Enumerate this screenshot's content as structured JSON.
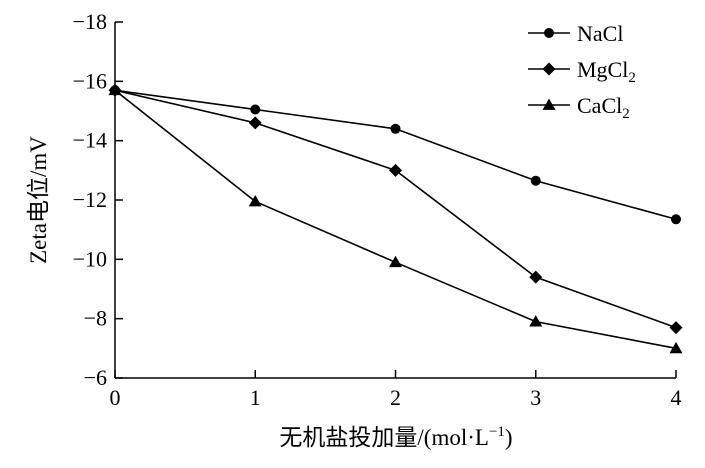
{
  "chart_data": {
    "type": "line",
    "x": [
      0,
      1,
      2,
      3,
      4
    ],
    "series": [
      {
        "name": "NaCl",
        "name_sub": "",
        "marker": "circle",
        "values": [
          -15.7,
          -15.05,
          -14.4,
          -12.65,
          -11.35
        ]
      },
      {
        "name": "MgCl",
        "name_sub": "2",
        "marker": "diamond",
        "values": [
          -15.7,
          -14.6,
          -13.0,
          -9.4,
          -7.7
        ]
      },
      {
        "name": "CaCl",
        "name_sub": "2",
        "marker": "triangle",
        "values": [
          -15.7,
          -11.95,
          -9.9,
          -7.9,
          -7.0
        ]
      }
    ],
    "xlabel": "无机盐投加量/(mol·L",
    "xlabel_sup": "−1",
    "xlabel_end": ")",
    "ylabel": "Zeta电位/mV",
    "xlim": [
      0,
      4
    ],
    "ylim": [
      -18,
      -6
    ],
    "y_inverted": true,
    "xticks": [
      0,
      1,
      2,
      3,
      4
    ],
    "yticks": [
      -18,
      -16,
      -14,
      -12,
      -10,
      -8,
      -6
    ],
    "xtick_labels": [
      "0",
      "1",
      "2",
      "3",
      "4"
    ],
    "ytick_labels": [
      "−18",
      "−16",
      "−14",
      "−12",
      "−10",
      "−8",
      "−6"
    ],
    "grid": false,
    "legend_position": "top-right",
    "line_color": "#000000"
  }
}
